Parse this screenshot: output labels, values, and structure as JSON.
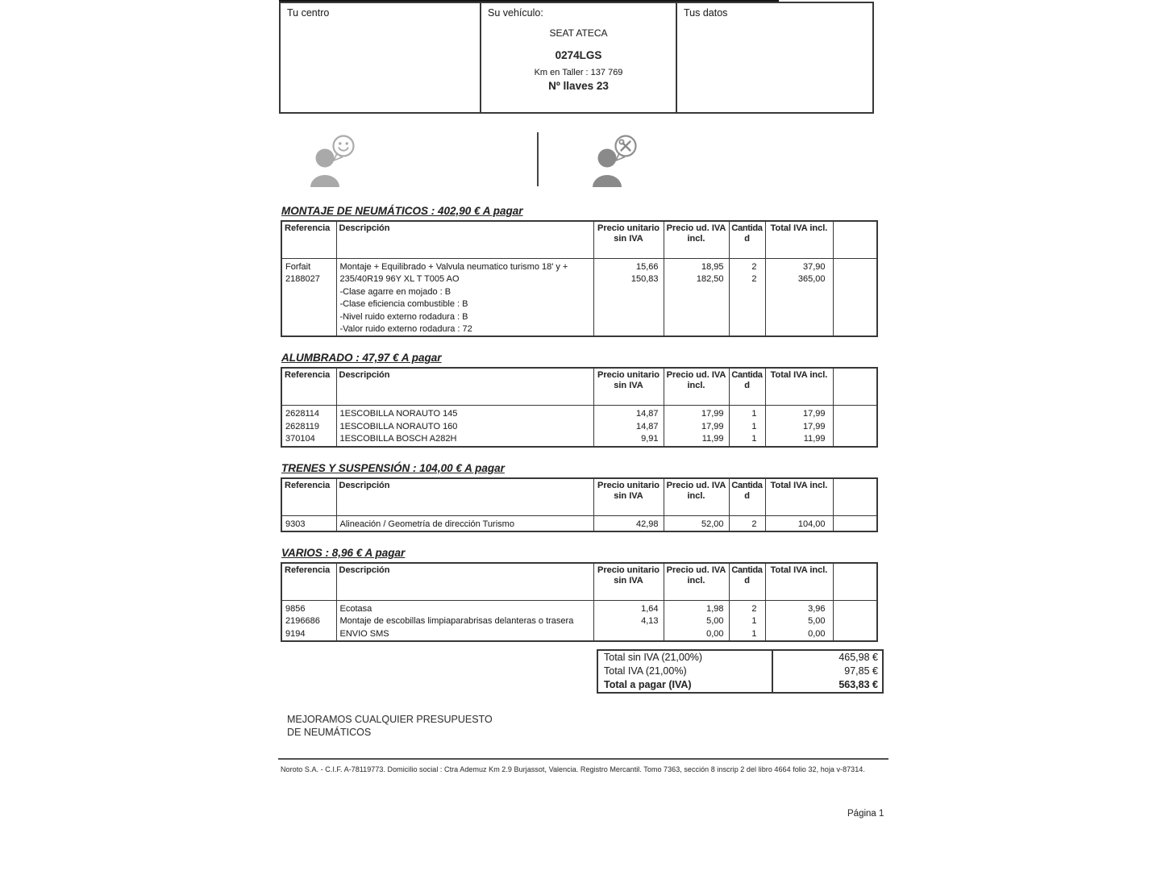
{
  "colors": {
    "text": "#2b2b2b",
    "border": "#383838",
    "icon_light": "#a9a9a9",
    "icon_dark": "#8a8a8a"
  },
  "header": {
    "centro_label": "Tu centro",
    "vehiculo_label": "Su vehículo:",
    "vehicle_model": "SEAT ATECA",
    "plate": "0274LGS",
    "km_line": "Km en Taller : 137 769",
    "keys_line": "Nº llaves 23",
    "datos_label": "Tus datos"
  },
  "icons": {
    "left": "customer-smile-speech-bubble-icon",
    "right": "mechanic-tools-speech-bubble-icon"
  },
  "table_headers": [
    "Referencia",
    "Descripción",
    "Precio unitario sin IVA",
    "Precio ud. IVA incl.",
    "Cantidad",
    "Total IVA incl.",
    ""
  ],
  "sections": [
    {
      "title": "MONTAJE DE NEUMÁTICOS : 402,90 € A pagar",
      "rows": [
        {
          "ref": "Forfait",
          "desc": "Montaje + Equilibrado + Valvula neumatico turismo 18' y +",
          "unit": "15,66",
          "unit_iva": "18,95",
          "qty": "2",
          "total": "37,90"
        },
        {
          "ref": "2188027",
          "desc": "235/40R19 96Y XL T T005 AO",
          "unit": "150,83",
          "unit_iva": "182,50",
          "qty": "2",
          "total": "365,00"
        },
        {
          "ref": "",
          "desc": "-Clase agarre en mojado : B",
          "unit": "",
          "unit_iva": "",
          "qty": "",
          "total": ""
        },
        {
          "ref": "",
          "desc": "-Clase eficiencia combustible : B",
          "unit": "",
          "unit_iva": "",
          "qty": "",
          "total": ""
        },
        {
          "ref": "",
          "desc": "-Nivel ruido externo rodadura : B",
          "unit": "",
          "unit_iva": "",
          "qty": "",
          "total": ""
        },
        {
          "ref": "",
          "desc": "-Valor ruido externo rodadura : 72",
          "unit": "",
          "unit_iva": "",
          "qty": "",
          "total": ""
        }
      ]
    },
    {
      "title": "ALUMBRADO : 47,97 € A pagar",
      "rows": [
        {
          "ref": "2628114",
          "desc": "1ESCOBILLA NORAUTO 145",
          "unit": "14,87",
          "unit_iva": "17,99",
          "qty": "1",
          "total": "17,99"
        },
        {
          "ref": "2628119",
          "desc": "1ESCOBILLA NORAUTO 160",
          "unit": "14,87",
          "unit_iva": "17,99",
          "qty": "1",
          "total": "17,99"
        },
        {
          "ref": "370104",
          "desc": "1ESCOBILLA BOSCH A282H",
          "unit": "9,91",
          "unit_iva": "11,99",
          "qty": "1",
          "total": "11,99"
        }
      ]
    },
    {
      "title": "TRENES Y SUSPENSIÓN : 104,00 € A pagar",
      "rows": [
        {
          "ref": "9303",
          "desc": "Alineación / Geometría de dirección Turismo",
          "unit": "42,98",
          "unit_iva": "52,00",
          "qty": "2",
          "total": "104,00"
        }
      ]
    },
    {
      "title": "VARIOS : 8,96 € A pagar",
      "rows": [
        {
          "ref": "9856",
          "desc": "Ecotasa",
          "unit": "1,64",
          "unit_iva": "1,98",
          "qty": "2",
          "total": "3,96"
        },
        {
          "ref": "2196686",
          "desc": "Montaje de escobillas limpiaparabrisas delanteras o trasera",
          "unit": "4,13",
          "unit_iva": "5,00",
          "qty": "1",
          "total": "5,00"
        },
        {
          "ref": "9194",
          "desc": "ENVIO SMS",
          "unit": "",
          "unit_iva": "0,00",
          "qty": "1",
          "total": "0,00"
        }
      ]
    }
  ],
  "totals": {
    "rows": [
      {
        "label": "Total sin IVA (21,00%)",
        "value": "465,98 €"
      },
      {
        "label": "Total IVA (21,00%)",
        "value": "97,85 €"
      },
      {
        "label": "Total a pagar (IVA)",
        "value": "563,83 €"
      }
    ]
  },
  "promo": {
    "line1": "MEJORAMOS CUALQUIER PRESUPUESTO",
    "line2": "DE NEUMÁTICOS"
  },
  "footer_text": "Noroto S.A. - C.I.F. A-78119773. Domicilio social : Ctra Ademuz Km 2.9 Burjassot, Valencia. Registro Mercantil. Tomo 7363, sección 8 inscrip 2 del libro 4664 folio 32, hoja v-87314.",
  "page_number_label": "Página 1"
}
